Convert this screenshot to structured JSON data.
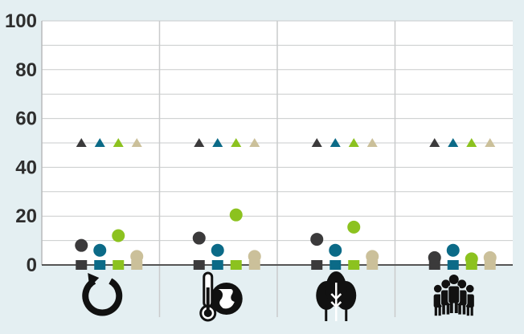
{
  "chart_data": {
    "type": "scatter",
    "title": "",
    "xlabel": "",
    "ylabel": "",
    "ylim": [
      0,
      100
    ],
    "yticks": [
      0,
      20,
      40,
      60,
      80,
      100
    ],
    "grid": true,
    "legend": "none",
    "categories": [
      {
        "icon": "circular-arrow-icon"
      },
      {
        "icon": "thermometer-globe-icon"
      },
      {
        "icon": "trees-icon"
      },
      {
        "icon": "people-group-icon"
      }
    ],
    "series": [
      {
        "color": "#3b3a3b",
        "triangle": [
          50,
          50,
          50,
          50
        ],
        "circle": [
          8,
          11,
          10.5,
          3
        ],
        "square": [
          0,
          0,
          0,
          0
        ]
      },
      {
        "color": "#0b6a87",
        "triangle": [
          50,
          50,
          50,
          50
        ],
        "circle": [
          6,
          6,
          6,
          6
        ],
        "square": [
          0,
          0,
          0,
          0
        ]
      },
      {
        "color": "#8cc21f",
        "triangle": [
          50,
          50,
          50,
          50
        ],
        "circle": [
          12,
          20.5,
          15.5,
          2.5
        ],
        "square": [
          0,
          0,
          0,
          0
        ]
      },
      {
        "color": "#cbc09a",
        "triangle": [
          50,
          50,
          50,
          50
        ],
        "circle": [
          3.5,
          3.5,
          3.5,
          3
        ],
        "square": [
          0,
          0,
          0,
          0
        ]
      }
    ]
  }
}
